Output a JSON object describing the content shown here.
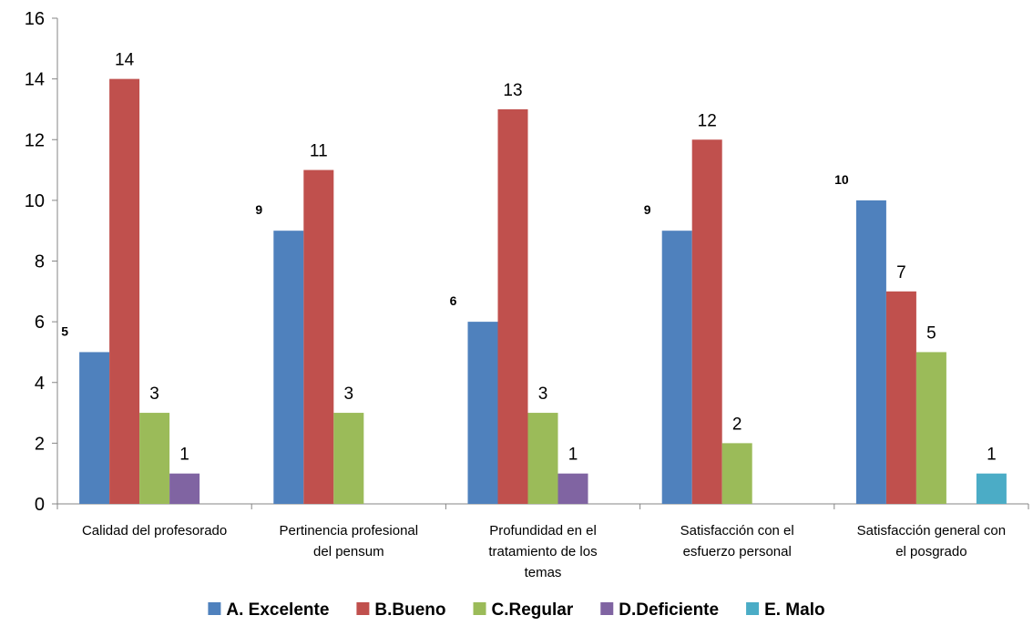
{
  "chart_data": {
    "type": "bar",
    "title": "",
    "xlabel": "",
    "ylabel": "",
    "ylim": [
      0,
      16
    ],
    "yticks": [
      0,
      2,
      4,
      6,
      8,
      10,
      12,
      14,
      16
    ],
    "grid": false,
    "legend_position": "bottom",
    "categories": [
      [
        "Calidad del profesorado"
      ],
      [
        "Pertinencia profesional",
        "del pensum"
      ],
      [
        "Profundidad en el",
        "tratamiento de los",
        "temas"
      ],
      [
        "Satisfacción con el",
        "esfuerzo personal"
      ],
      [
        "Satisfacción general con",
        "el posgrado"
      ]
    ],
    "series": [
      {
        "name": "A. Excelente",
        "color": "#4F81BD",
        "values": [
          5,
          9,
          6,
          9,
          10
        ],
        "labels_bold": true
      },
      {
        "name": "B.Bueno",
        "color": "#C0504D",
        "values": [
          14,
          11,
          13,
          12,
          7
        ],
        "labels_bold": false
      },
      {
        "name": "C.Regular",
        "color": "#9BBB59",
        "values": [
          3,
          3,
          3,
          2,
          5
        ],
        "labels_bold": false
      },
      {
        "name": "D.Deficiente",
        "color": "#8064A2",
        "values": [
          1,
          null,
          1,
          null,
          null
        ],
        "labels_bold": false
      },
      {
        "name": "E. Malo",
        "color": "#4BACC6",
        "values": [
          null,
          null,
          null,
          null,
          1
        ],
        "labels_bold": false
      }
    ]
  }
}
